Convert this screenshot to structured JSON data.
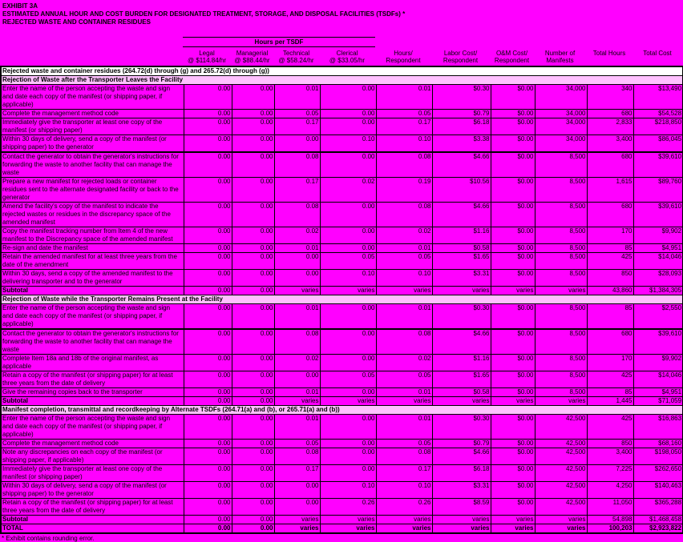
{
  "page": {
    "colors": {
      "background": "#FF00FF",
      "table_title_bg": "#FFFFFF",
      "section_header_bg": "#FFC0FF",
      "text": "#000000"
    },
    "title_lines": [
      "EXHIBIT 3A",
      "ESTIMATED ANNUAL HOUR AND COST BURDEN FOR DESIGNATED TREATMENT, STORAGE, AND DISPOSAL FACILITIES (TSDFs) *",
      "REJECTED WASTE AND CONTAINER RESIDUES"
    ]
  },
  "table": {
    "group_header": "Hours per TSDF",
    "columns": [
      {
        "line1": "Legal",
        "line2": "@ $114.84/hr"
      },
      {
        "line1": "Managerial",
        "line2": "@ $88.44/hr"
      },
      {
        "line1": "Technical",
        "line2": "@ $58.24/hr"
      },
      {
        "line1": "Clerical",
        "line2": "@ $33.05/hr"
      },
      {
        "line1": "Hours/",
        "line2": "Respondent"
      },
      {
        "line1": "Labor Cost/",
        "line2": "Respondent"
      },
      {
        "line1": "O&M Cost/",
        "line2": "Respondent"
      },
      {
        "line1": "Number of",
        "line2": "Manifests"
      },
      {
        "line1": "",
        "line2": "Total Hours"
      },
      {
        "line1": "",
        "line2": "Total Cost"
      }
    ],
    "title_row": "Rejected waste and container residues (264.72(d) through (g) and 265.72(d) through (g))",
    "sections": [
      {
        "header": "Rejection of Waste after the Transporter Leaves the Facility",
        "rows": [
          {
            "kind": "data",
            "label": "Enter the name of the person accepting the waste and sign and date each copy of the manifest (or shipping paper, if applicable)",
            "values": [
              "0.00",
              "0.00",
              "0.01",
              "0.00",
              "0.01",
              "$0.30",
              "$0.00",
              "34,000",
              "340",
              "$13,490"
            ]
          },
          {
            "kind": "data",
            "label": "Complete the management method code",
            "values": [
              "0.00",
              "0.00",
              "0.05",
              "0.00",
              "0.05",
              "$0.79",
              "$0.00",
              "34,000",
              "680",
              "$54,528"
            ]
          },
          {
            "kind": "data",
            "label": "Immediately give the transporter at least one copy of the manifest (or shipping paper)",
            "values": [
              "0.00",
              "0.00",
              "0.17",
              "0.00",
              "0.17",
              "$6.18",
              "$0.00",
              "34,000",
              "2,833",
              "$218,850"
            ]
          },
          {
            "kind": "data",
            "label": "Within 30 days of delivery, send a copy of the manifest (or shipping paper) to the generator",
            "values": [
              "0.00",
              "0.00",
              "0.00",
              "0.10",
              "0.10",
              "$3.38",
              "$0.00",
              "34,000",
              "3,400",
              "$86,045"
            ]
          },
          {
            "kind": "blank",
            "label": "",
            "values": [
              "",
              "",
              "",
              "",
              "",
              "",
              "",
              "",
              "",
              ""
            ]
          },
          {
            "kind": "data",
            "label": "Contact the generator to obtain the generator's instructions for forwarding the waste to another facility that can manage the waste",
            "values": [
              "0.00",
              "0.00",
              "0.08",
              "0.00",
              "0.08",
              "$4.66",
              "$0.00",
              "8,500",
              "680",
              "$39,610"
            ]
          },
          {
            "kind": "data",
            "label": "Prepare a new manifest for rejected loads or container residues sent to the alternate designated facility or back to the generator",
            "values": [
              "0.00",
              "0.00",
              "0.17",
              "0.02",
              "0.19",
              "$10.56",
              "$0.00",
              "8,500",
              "1,615",
              "$89,760"
            ]
          },
          {
            "kind": "data",
            "label": "Amend the facility's copy of the manifest to indicate the rejected wastes or residues in the discrepancy space of the amended manifest",
            "values": [
              "0.00",
              "0.00",
              "0.08",
              "0.00",
              "0.08",
              "$4.66",
              "$0.00",
              "8,500",
              "680",
              "$39,610"
            ]
          },
          {
            "kind": "data",
            "label": "Copy the manifest tracking number from Item 4 of the new manifest to the Discrepancy space of the amended manifest",
            "values": [
              "0.00",
              "0.00",
              "0.02",
              "0.00",
              "0.02",
              "$1.16",
              "$0.00",
              "8,500",
              "170",
              "$9,902"
            ]
          },
          {
            "kind": "data",
            "label": "Re-sign and date the manifest",
            "values": [
              "0.00",
              "0.00",
              "0.01",
              "0.00",
              "0.01",
              "$0.58",
              "$0.00",
              "8,500",
              "85",
              "$4,951"
            ]
          },
          {
            "kind": "data",
            "label": "Retain the amended manifest for at least three years from the date of the amendment",
            "values": [
              "0.00",
              "0.00",
              "0.00",
              "0.05",
              "0.05",
              "$1.65",
              "$0.00",
              "8,500",
              "425",
              "$14,046"
            ]
          },
          {
            "kind": "data",
            "label": "Within 30 days, send a copy of the amended manifest to the delivering transporter and to the generator",
            "values": [
              "0.00",
              "0.00",
              "0.00",
              "0.10",
              "0.10",
              "$3.31",
              "$0.00",
              "8,500",
              "850",
              "$28,093"
            ]
          },
          {
            "kind": "subtotal",
            "label": "Subtotal",
            "values": [
              "0.00",
              "0.00",
              "varies",
              "varies",
              "varies",
              "varies",
              "varies",
              "varies",
              "43,860",
              "$1,384,305"
            ]
          }
        ]
      },
      {
        "header": "Rejection of Waste while the Transporter Remains Present at the Facility",
        "rows": [
          {
            "kind": "data",
            "label": "Enter the name of the person accepting the waste and sign and date each copy of the manifest (or shipping paper, if applicable)",
            "values": [
              "0.00",
              "0.00",
              "0.01",
              "0.00",
              "0.01",
              "$0.30",
              "$0.00",
              "8,500",
              "85",
              "$2,550"
            ]
          },
          {
            "kind": "blank",
            "label": "",
            "values": [
              "",
              "",
              "",
              "",
              "",
              "",
              "",
              "",
              "",
              ""
            ]
          },
          {
            "kind": "data",
            "label": "Contact the generator to obtain the generator's instructions for forwarding the waste to another facility that can manage the waste",
            "values": [
              "0.00",
              "0.00",
              "0.08",
              "0.00",
              "0.08",
              "$4.66",
              "$0.00",
              "8,500",
              "680",
              "$39,610"
            ]
          },
          {
            "kind": "data",
            "label": "Complete Item 18a and 18b of the original manifest, as applicable",
            "values": [
              "0.00",
              "0.00",
              "0.02",
              "0.00",
              "0.02",
              "$1.16",
              "$0.00",
              "8,500",
              "170",
              "$9,902"
            ]
          },
          {
            "kind": "data",
            "label": "Retain a copy of the manifest (or shipping paper) for at least three years from the date of delivery",
            "values": [
              "0.00",
              "0.00",
              "0.00",
              "0.05",
              "0.05",
              "$1.65",
              "$0.00",
              "8,500",
              "425",
              "$14,046"
            ]
          },
          {
            "kind": "data",
            "label": "Give the remaining copies back to the transporter",
            "values": [
              "0.00",
              "0.00",
              "0.01",
              "0.00",
              "0.01",
              "$0.58",
              "$0.00",
              "8,500",
              "85",
              "$4,951"
            ]
          },
          {
            "kind": "subtotal",
            "label": "Subtotal",
            "values": [
              "0.00",
              "0.00",
              "varies",
              "varies",
              "varies",
              "varies",
              "varies",
              "varies",
              "1,445",
              "$71,059"
            ]
          }
        ]
      },
      {
        "header": "Manifest completion, transmittal and recordkeeping by Alternate TSDFs (264.71(a) and (b), or 265.71(a) and (b))",
        "rows": [
          {
            "kind": "data",
            "label": "Enter the name of the person accepting the waste and sign and date each copy of the manifest (or shipping paper, if applicable)",
            "values": [
              "0.00",
              "0.00",
              "0.01",
              "0.00",
              "0.01",
              "$0.30",
              "$0.00",
              "42,500",
              "425",
              "$16,863"
            ]
          },
          {
            "kind": "data",
            "label": "Complete the management method code",
            "values": [
              "0.00",
              "0.00",
              "0.05",
              "0.00",
              "0.05",
              "$0.79",
              "$0.00",
              "42,500",
              "850",
              "$68,160"
            ]
          },
          {
            "kind": "data",
            "label": "Note any discrepancies on each copy of the manifest (or shipping paper, if applicable)",
            "values": [
              "0.00",
              "0.00",
              "0.08",
              "0.00",
              "0.08",
              "$4.66",
              "$0.00",
              "42,500",
              "3,400",
              "$198,050"
            ]
          },
          {
            "kind": "data",
            "label": "Immediately give the transporter at least one copy of the manifest (or shipping paper)",
            "values": [
              "0.00",
              "0.00",
              "0.17",
              "0.00",
              "0.17",
              "$6.18",
              "$0.00",
              "42,500",
              "7,225",
              "$262,650"
            ]
          },
          {
            "kind": "data",
            "label": "Within 30 days of delivery, send a copy of the manifest (or shipping paper) to the generator",
            "values": [
              "0.00",
              "0.00",
              "0.00",
              "0.10",
              "0.10",
              "$3.31",
              "$0.00",
              "42,500",
              "4,250",
              "$140,463"
            ]
          },
          {
            "kind": "data",
            "label": "Retain a copy of the manifest (or shipping paper) for at least three years from the date of delivery",
            "values": [
              "0.00",
              "0.00",
              "0.00",
              "0.26",
              "0.26",
              "$8.59",
              "$0.00",
              "42,500",
              "11,050",
              "$365,288"
            ]
          },
          {
            "kind": "subtotal",
            "label": "Subtotal",
            "values": [
              "0.00",
              "0.00",
              "varies",
              "varies",
              "varies",
              "varies",
              "varies",
              "varies",
              "54,898",
              "$1,468,458"
            ]
          }
        ]
      }
    ],
    "total_row": {
      "label": "TOTAL",
      "values": [
        "0.00",
        "0.00",
        "varies",
        "varies",
        "varies",
        "varies",
        "varies",
        "varies",
        "100,203",
        "$2,923,822"
      ]
    },
    "footnote": "* Exhibit contains rounding error."
  }
}
